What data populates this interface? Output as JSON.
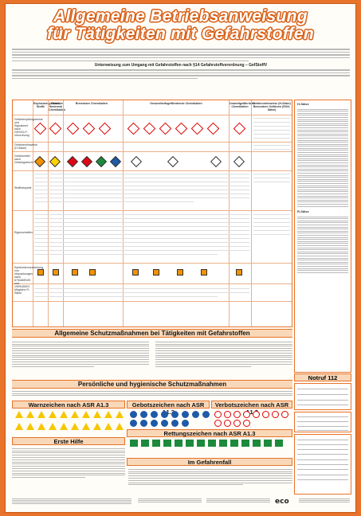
{
  "title": {
    "line1": "Allgemeine Betriebsanweisung",
    "line2": "für Tätigkeiten mit Gefahrstoffen"
  },
  "intro": {
    "subheading": "Unterweisung zum Umgang mit Gefahrstoffen nach §14 Gefahrstoffverordnung – GefStoffV"
  },
  "table": {
    "columns": [
      "Explosionsgefährliche Stoffe",
      "Brand-fördernde Chemikalien",
      "Brennbare Chemikalien",
      "Gesundheitsgefährdende Chemikalien",
      "Umweltgefährliche Chemikalien",
      "Gefahrenhinweise (H-Sätze) Besondere Gefahren (EUH-Sätze)"
    ],
    "rows": [
      "Gefahrenpiktogramme und Signalwort nach GHS/CLP-Verordnung",
      "Gefahrenhinweise (H-Sätze)",
      "Gefahrzettel nach Gefahrgutrecht",
      "Stoffbeispiele",
      "Eigenschaften",
      "Symbolkennzeichnung von Verpackungen nach 67/548/EWG und 1999/45/EG",
      "Mögliche R-Sätze"
    ]
  },
  "right_panel": {
    "label1": "H-Sätze",
    "label2": "R-Sätze"
  },
  "sections": {
    "general": "Allgemeine Schutzmaßnahmen bei Tätigkeiten mit Gefahrstoffen",
    "personal": "Persönliche und hygienische Schutzmaßnahmen",
    "warn": "Warnzeichen nach ASR A1.3",
    "gebot": "Gebotszeichen nach ASR A1.3",
    "verbot": "Verbotszeichen nach ASR A1.3",
    "firstaid": "Erste Hilfe",
    "rescue": "Rettungszeichen nach ASR A1.3",
    "danger": "Im Gefahrenfall",
    "notruf": "Notruf 112"
  },
  "footer": {
    "logo": "eco"
  },
  "colors": {
    "accent": "#e8732a",
    "section_bg": "#f8d8b8",
    "ghs_red": "#dd0000"
  }
}
